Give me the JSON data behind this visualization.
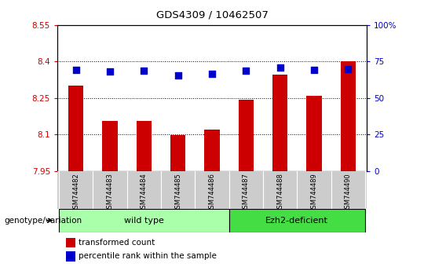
{
  "title": "GDS4309 / 10462507",
  "samples": [
    "GSM744482",
    "GSM744483",
    "GSM744484",
    "GSM744485",
    "GSM744486",
    "GSM744487",
    "GSM744488",
    "GSM744489",
    "GSM744490"
  ],
  "bar_values": [
    8.3,
    8.155,
    8.155,
    8.098,
    8.12,
    8.243,
    8.345,
    8.26,
    8.4
  ],
  "percentile_values": [
    69.5,
    68.0,
    68.5,
    65.5,
    66.5,
    68.5,
    71.0,
    69.0,
    70.0
  ],
  "ylim_left": [
    7.95,
    8.55
  ],
  "ylim_right": [
    0,
    100
  ],
  "yticks_left": [
    7.95,
    8.1,
    8.25,
    8.4,
    8.55
  ],
  "yticks_right": [
    0,
    25,
    50,
    75,
    100
  ],
  "bar_color": "#cc0000",
  "dot_color": "#0000cc",
  "wild_type_count": 5,
  "wild_type_label": "wild type",
  "ezh2_label": "Ezh2-deficient",
  "wild_type_color": "#aaffaa",
  "ezh2_color": "#44dd44",
  "group_label": "genotype/variation",
  "legend_bar_label": "transformed count",
  "legend_dot_label": "percentile rank within the sample",
  "left_tick_color": "#cc0000",
  "right_tick_color": "#0000cc",
  "tick_bg_color": "#cccccc",
  "plot_bg_color": "#ffffff",
  "fig_bg_color": "#ffffff",
  "bar_width": 0.45,
  "dot_size": 28
}
